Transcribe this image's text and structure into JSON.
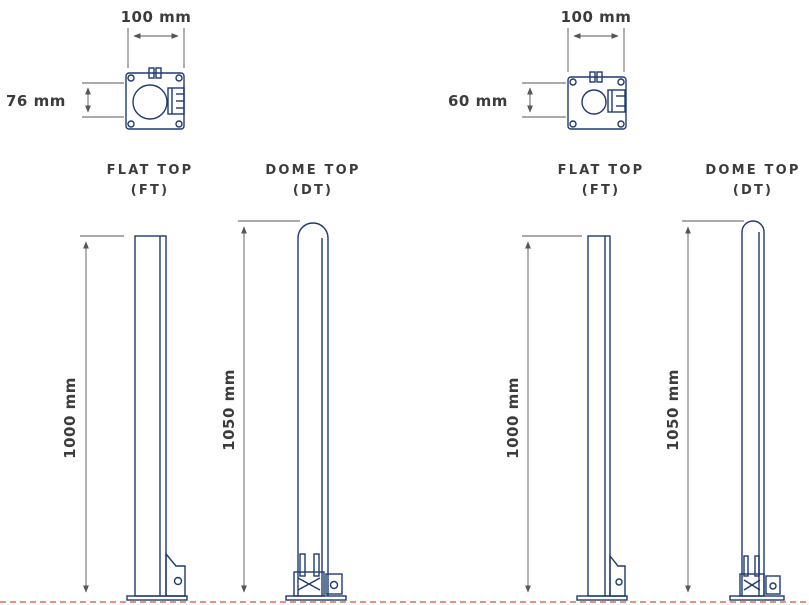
{
  "left_set": {
    "plate_width_label": "100 mm",
    "plate_depth_label": "76 mm",
    "flat_top": {
      "caption_line1": "FLAT TOP",
      "caption_line2": "(FT)",
      "height_label": "1000 mm"
    },
    "dome_top": {
      "caption_line1": "DOME TOP",
      "caption_line2": "(DT)",
      "height_label": "1050 mm"
    }
  },
  "right_set": {
    "plate_width_label": "100 mm",
    "plate_depth_label": "60 mm",
    "flat_top": {
      "caption_line1": "FLAT TOP",
      "caption_line2": "(FT)",
      "height_label": "1000 mm"
    },
    "dome_top": {
      "caption_line1": "DOME TOP",
      "caption_line2": "(DT)",
      "height_label": "1050 mm"
    }
  },
  "colors": {
    "ink": "#1f3a6e",
    "text": "#3c3c3c",
    "ground_line": "#e8937a"
  }
}
